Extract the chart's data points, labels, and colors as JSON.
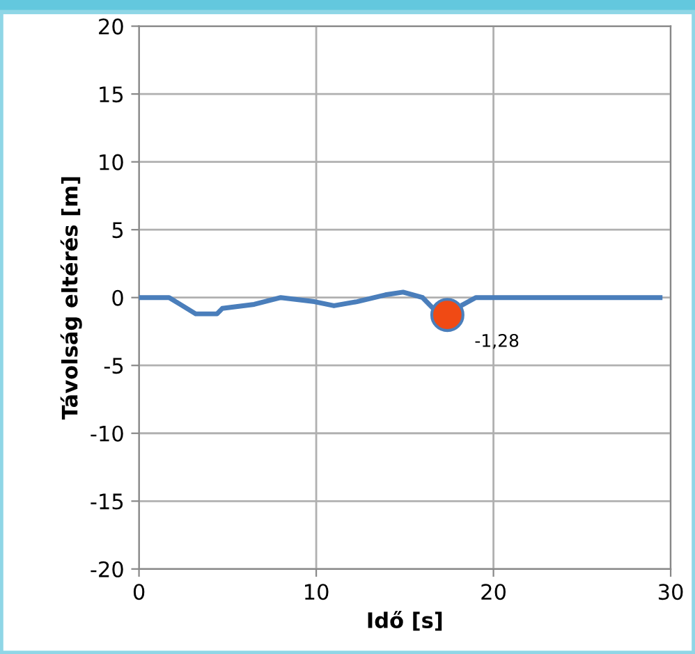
{
  "chart_data": {
    "type": "line",
    "xlabel": "Idő [s]",
    "ylabel": "Távolság eltérés [m]",
    "xlim": [
      0,
      30
    ],
    "xticks": [
      0,
      10,
      20,
      30
    ],
    "ylim": [
      -20,
      20
    ],
    "yticks": [
      20,
      15,
      10,
      5,
      0,
      -5,
      -10,
      -15,
      -20
    ],
    "grid": true,
    "line_style": "solid",
    "series": [
      {
        "color": "#4a7ebb",
        "marker": "none",
        "x": [
          0,
          1.7,
          3.2,
          4.4,
          4.7,
          6.5,
          8,
          9.9,
          11,
          12.3,
          13.9,
          14.9,
          16,
          16.6,
          17.4,
          18.3,
          19,
          29.4
        ],
        "values": [
          0,
          0,
          -1.2,
          -1.2,
          -0.8,
          -0.5,
          0,
          -0.3,
          -0.6,
          -0.3,
          0.2,
          0.4,
          0,
          -0.8,
          null,
          -0.5,
          0,
          0
        ]
      },
      {
        "type": "scatter",
        "marker": "circle",
        "color": "#f04a14",
        "x": [
          17.4
        ],
        "values": [
          -1.28
        ],
        "value_labels": [
          "-1,28"
        ]
      }
    ]
  }
}
